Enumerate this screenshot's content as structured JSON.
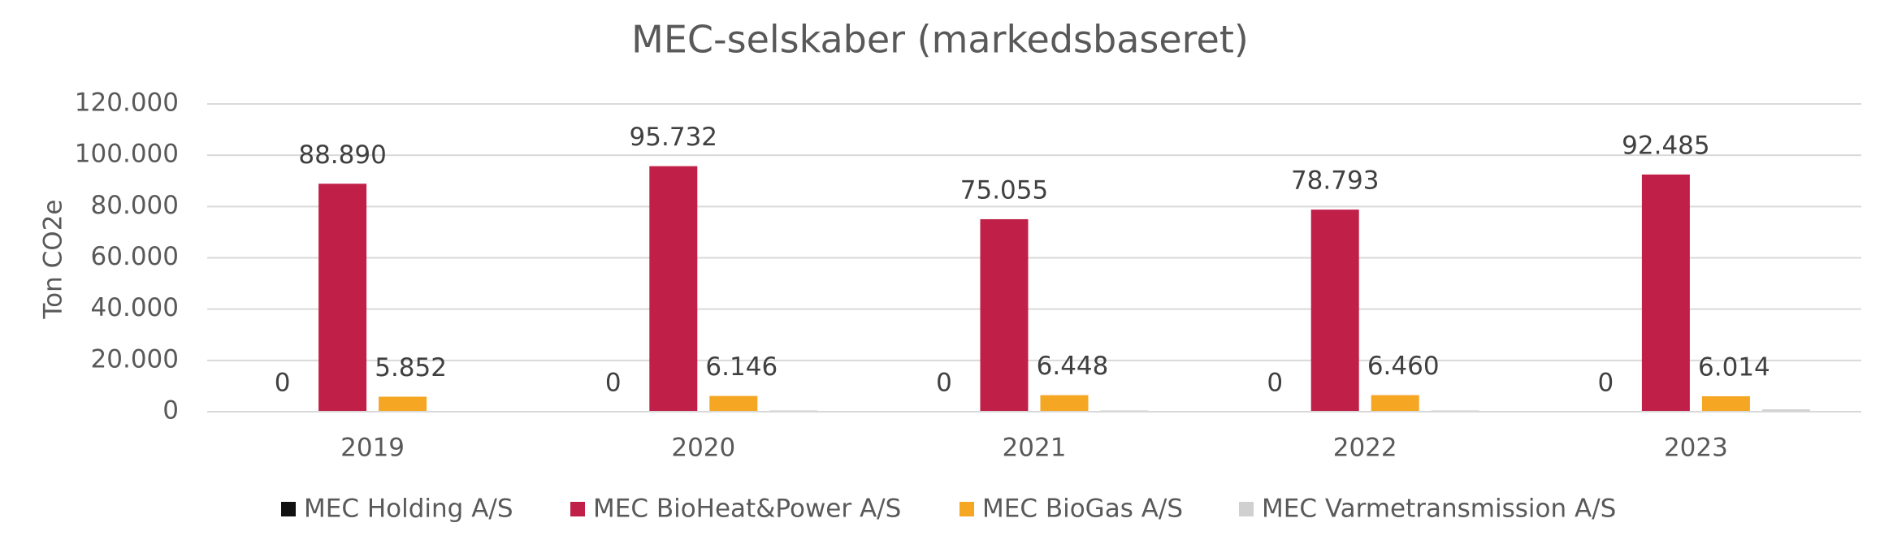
{
  "chart_data": {
    "type": "bar",
    "title": "MEC-selskaber (markedsbaseret)",
    "y_label": "Ton CO2e",
    "categories": [
      "2019",
      "2020",
      "2021",
      "2022",
      "2023"
    ],
    "series": [
      {
        "name": "MEC Holding A/S",
        "color": "#111111",
        "values": [
          0,
          0,
          0,
          0,
          0
        ],
        "value_labels": [
          "0",
          "0",
          "0",
          "0",
          "0"
        ]
      },
      {
        "name": "MEC BioHeat&Power A/S",
        "color": "#c01f48",
        "values": [
          88890,
          95732,
          75055,
          78793,
          92485
        ],
        "value_labels": [
          "88.890",
          "95.732",
          "75.055",
          "78.793",
          "92.485"
        ]
      },
      {
        "name": "MEC BioGas A/S",
        "color": "#f5a623",
        "values": [
          5852,
          6146,
          6448,
          6460,
          6014
        ],
        "value_labels": [
          "5.852",
          "6.146",
          "6.448",
          "6.460",
          "6.014"
        ]
      },
      {
        "name": "MEC Varmetransmission A/S",
        "color": "#d0d0d0",
        "values": [
          300,
          500,
          500,
          500,
          900
        ]
      }
    ],
    "ylim": [
      0,
      120000
    ],
    "yticks": [
      0,
      {
        "value": 20000,
        "label": "20.000"
      },
      {
        "value": 40000,
        "label": "40.000"
      },
      {
        "value": 60000,
        "label": "60.000"
      },
      {
        "value": 80000,
        "label": "80.000"
      },
      {
        "value": 100000,
        "label": "100.000"
      },
      {
        "value": 120000,
        "label": "120.000"
      }
    ],
    "grid": true,
    "legend": "bottom"
  }
}
